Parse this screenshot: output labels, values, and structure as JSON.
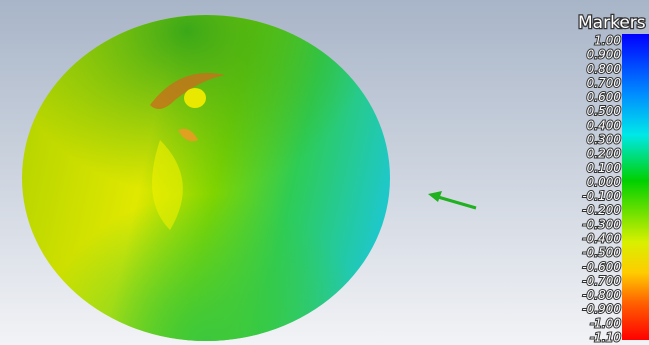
{
  "legend": {
    "title": "Markers",
    "labels": [
      "1.00",
      "0.900",
      "0.800",
      "0.700",
      "0.600",
      "0.500",
      "0.400",
      "0.300",
      "0.200",
      "0.100",
      "0.000",
      "-0.100",
      "-0.200",
      "-0.300",
      "-0.400",
      "-0.500",
      "-0.600",
      "-0.700",
      "-0.800",
      "-0.900",
      "-1.00",
      "-1.10"
    ]
  }
}
